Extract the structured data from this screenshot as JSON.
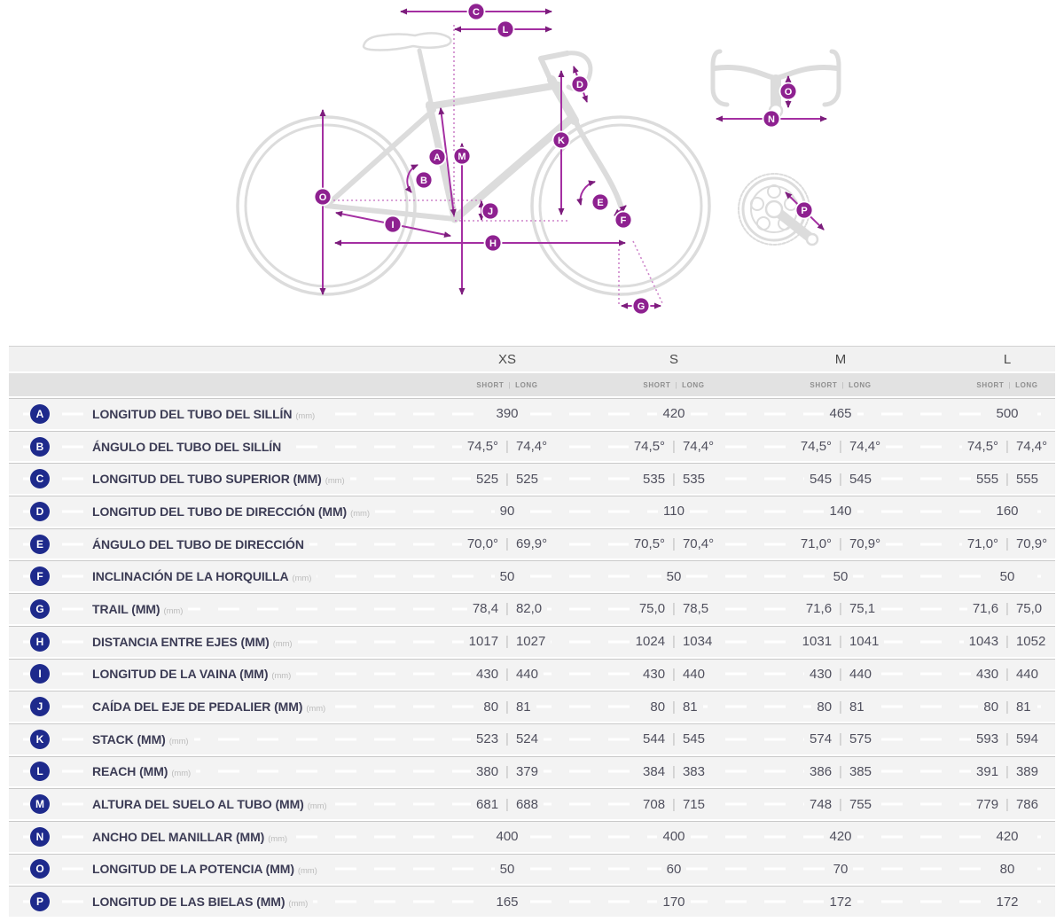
{
  "diagram": {
    "badge_letters": {
      "A": "A",
      "B": "B",
      "C": "C",
      "D": "D",
      "E": "E",
      "F": "F",
      "G": "G",
      "H": "H",
      "I": "I",
      "J": "J",
      "K": "K",
      "L": "L",
      "M": "M",
      "N": "N",
      "O": "O",
      "P": "P"
    },
    "colors": {
      "line": "#a42fa2",
      "arrow": "#7c1d7c",
      "badge": "#8e2190",
      "dotted": "#cd84ca",
      "bike": "#dcdcdc"
    }
  },
  "table": {
    "sizes": [
      "XS",
      "S",
      "M",
      "L"
    ],
    "subheader": {
      "short": "SHORT",
      "sep": "|",
      "long": "LONG"
    },
    "value_separator": "|",
    "badge_color": "#1e2a8c",
    "rows": [
      {
        "letter": "A",
        "label": "LONGITUD DEL TUBO DEL SILLÍN",
        "unit": "(mm)",
        "values": [
          [
            "390"
          ],
          [
            "420"
          ],
          [
            "465"
          ],
          [
            "500"
          ]
        ]
      },
      {
        "letter": "B",
        "label": "ÁNGULO DEL TUBO DEL SILLÍN",
        "unit": "",
        "values": [
          [
            "74,5°",
            "74,4°"
          ],
          [
            "74,5°",
            "74,4°"
          ],
          [
            "74,5°",
            "74,4°"
          ],
          [
            "74,5°",
            "74,4°"
          ]
        ]
      },
      {
        "letter": "C",
        "label": "LONGITUD DEL TUBO SUPERIOR (MM)",
        "unit": "(mm)",
        "values": [
          [
            "525",
            "525"
          ],
          [
            "535",
            "535"
          ],
          [
            "545",
            "545"
          ],
          [
            "555",
            "555"
          ]
        ]
      },
      {
        "letter": "D",
        "label": "LONGITUD DEL TUBO DE DIRECCIÓN (MM)",
        "unit": "(mm)",
        "values": [
          [
            "90"
          ],
          [
            "110"
          ],
          [
            "140"
          ],
          [
            "160"
          ]
        ]
      },
      {
        "letter": "E",
        "label": "ÁNGULO DEL TUBO DE DIRECCIÓN",
        "unit": "",
        "values": [
          [
            "70,0°",
            "69,9°"
          ],
          [
            "70,5°",
            "70,4°"
          ],
          [
            "71,0°",
            "70,9°"
          ],
          [
            "71,0°",
            "70,9°"
          ]
        ]
      },
      {
        "letter": "F",
        "label": "INCLINACIÓN DE LA HORQUILLA",
        "unit": "(mm)",
        "values": [
          [
            "50"
          ],
          [
            "50"
          ],
          [
            "50"
          ],
          [
            "50"
          ]
        ]
      },
      {
        "letter": "G",
        "label": "TRAIL (MM)",
        "unit": "(mm)",
        "values": [
          [
            "78,4",
            "82,0"
          ],
          [
            "75,0",
            "78,5"
          ],
          [
            "71,6",
            "75,1"
          ],
          [
            "71,6",
            "75,0"
          ]
        ]
      },
      {
        "letter": "H",
        "label": "DISTANCIA ENTRE EJES (MM)",
        "unit": "(mm)",
        "values": [
          [
            "1017",
            "1027"
          ],
          [
            "1024",
            "1034"
          ],
          [
            "1031",
            "1041"
          ],
          [
            "1043",
            "1052"
          ]
        ]
      },
      {
        "letter": "I",
        "label": "LONGITUD DE LA VAINA (MM)",
        "unit": "(mm)",
        "values": [
          [
            "430",
            "440"
          ],
          [
            "430",
            "440"
          ],
          [
            "430",
            "440"
          ],
          [
            "430",
            "440"
          ]
        ]
      },
      {
        "letter": "J",
        "label": "CAÍDA DEL EJE DE PEDALIER (MM)",
        "unit": "(mm)",
        "values": [
          [
            "80",
            "81"
          ],
          [
            "80",
            "81"
          ],
          [
            "80",
            "81"
          ],
          [
            "80",
            "81"
          ]
        ]
      },
      {
        "letter": "K",
        "label": "STACK (MM)",
        "unit": "(mm)",
        "values": [
          [
            "523",
            "524"
          ],
          [
            "544",
            "545"
          ],
          [
            "574",
            "575"
          ],
          [
            "593",
            "594"
          ]
        ]
      },
      {
        "letter": "L",
        "label": "REACH (MM)",
        "unit": "(mm)",
        "values": [
          [
            "380",
            "379"
          ],
          [
            "384",
            "383"
          ],
          [
            "386",
            "385"
          ],
          [
            "391",
            "389"
          ]
        ]
      },
      {
        "letter": "M",
        "label": "ALTURA DEL SUELO AL TUBO (MM)",
        "unit": "(mm)",
        "values": [
          [
            "681",
            "688"
          ],
          [
            "708",
            "715"
          ],
          [
            "748",
            "755"
          ],
          [
            "779",
            "786"
          ]
        ]
      },
      {
        "letter": "N",
        "label": "ANCHO DEL MANILLAR (MM)",
        "unit": "(mm)",
        "values": [
          [
            "400"
          ],
          [
            "400"
          ],
          [
            "420"
          ],
          [
            "420"
          ]
        ]
      },
      {
        "letter": "O",
        "label": "LONGITUD DE LA POTENCIA (MM)",
        "unit": "(mm)",
        "values": [
          [
            "50"
          ],
          [
            "60"
          ],
          [
            "70"
          ],
          [
            "80"
          ]
        ]
      },
      {
        "letter": "P",
        "label": "LONGITUD DE LAS BIELAS (MM)",
        "unit": "(mm)",
        "values": [
          [
            "165"
          ],
          [
            "170"
          ],
          [
            "172"
          ],
          [
            "172"
          ]
        ]
      }
    ]
  }
}
